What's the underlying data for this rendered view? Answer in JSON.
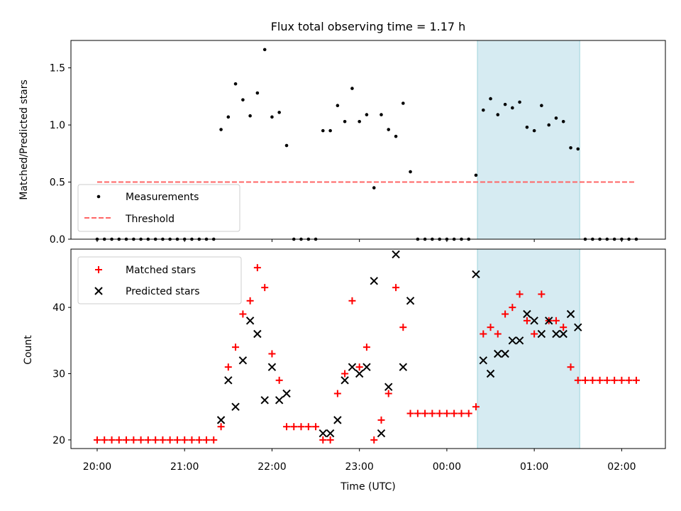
{
  "title": "Flux total observing time = 1.17 h",
  "colors": {
    "measurement": "#000000",
    "threshold": "#ff6666",
    "matched": "#ff0000",
    "predicted": "#000000",
    "highlight_fill": "#add8e6",
    "highlight_edge": "#9dd4dc"
  },
  "chart_data": [
    {
      "type": "scatter",
      "ylabel": "Matched/Predicted stars",
      "ylim": [
        0,
        1.74
      ],
      "yticks": [
        0.0,
        0.5,
        1.0,
        1.5
      ],
      "ytick_labels": [
        "0.0",
        "0.5",
        "1.0",
        "1.5"
      ],
      "legend_position": "lower-left",
      "series": [
        {
          "name": "Measurements",
          "marker": "dot",
          "points": [
            [
              20.0,
              0
            ],
            [
              20.083,
              0
            ],
            [
              20.167,
              0
            ],
            [
              20.25,
              0
            ],
            [
              20.333,
              0
            ],
            [
              20.417,
              0
            ],
            [
              20.5,
              0
            ],
            [
              20.583,
              0
            ],
            [
              20.667,
              0
            ],
            [
              20.75,
              0
            ],
            [
              20.833,
              0
            ],
            [
              20.917,
              0
            ],
            [
              21.0,
              0
            ],
            [
              21.083,
              0
            ],
            [
              21.167,
              0
            ],
            [
              21.25,
              0
            ],
            [
              21.333,
              0
            ],
            [
              21.417,
              0.96
            ],
            [
              21.5,
              1.07
            ],
            [
              21.583,
              1.36
            ],
            [
              21.667,
              1.22
            ],
            [
              21.75,
              1.08
            ],
            [
              21.833,
              1.28
            ],
            [
              21.917,
              1.66
            ],
            [
              22.0,
              1.07
            ],
            [
              22.083,
              1.11
            ],
            [
              22.167,
              0.82
            ],
            [
              22.25,
              0
            ],
            [
              22.333,
              0
            ],
            [
              22.417,
              0
            ],
            [
              22.5,
              0
            ],
            [
              22.583,
              0.95
            ],
            [
              22.667,
              0.95
            ],
            [
              22.75,
              1.17
            ],
            [
              22.833,
              1.03
            ],
            [
              22.917,
              1.32
            ],
            [
              23.0,
              1.03
            ],
            [
              23.083,
              1.09
            ],
            [
              23.167,
              0.45
            ],
            [
              23.25,
              1.09
            ],
            [
              23.333,
              0.96
            ],
            [
              23.417,
              0.9
            ],
            [
              23.5,
              1.19
            ],
            [
              23.583,
              0.59
            ],
            [
              23.667,
              0
            ],
            [
              23.75,
              0
            ],
            [
              23.833,
              0
            ],
            [
              23.917,
              0
            ],
            [
              24.0,
              0
            ],
            [
              24.083,
              0
            ],
            [
              24.167,
              0
            ],
            [
              24.25,
              0
            ],
            [
              24.333,
              0.56
            ],
            [
              24.417,
              1.13
            ],
            [
              24.5,
              1.23
            ],
            [
              24.583,
              1.09
            ],
            [
              24.667,
              1.18
            ],
            [
              24.75,
              1.15
            ],
            [
              24.833,
              1.2
            ],
            [
              24.917,
              0.98
            ],
            [
              25.0,
              0.95
            ],
            [
              25.083,
              1.17
            ],
            [
              25.167,
              1.0
            ],
            [
              25.25,
              1.06
            ],
            [
              25.333,
              1.03
            ],
            [
              25.417,
              0.8
            ],
            [
              25.5,
              0.79
            ],
            [
              25.583,
              0
            ],
            [
              25.667,
              0
            ],
            [
              25.75,
              0
            ],
            [
              25.833,
              0
            ],
            [
              25.917,
              0
            ],
            [
              26.0,
              0
            ],
            [
              26.083,
              0
            ],
            [
              26.167,
              0
            ]
          ]
        },
        {
          "name": "Threshold",
          "style": "dashed",
          "x": [
            20.0,
            26.167
          ],
          "y": [
            0.5,
            0.5
          ]
        }
      ]
    },
    {
      "type": "scatter",
      "ylabel": "Count",
      "xlabel": "Time (UTC)",
      "ylim": [
        18.7,
        48.8
      ],
      "yticks": [
        20,
        30,
        40
      ],
      "ytick_labels": [
        "20",
        "30",
        "40"
      ],
      "legend_position": "top-left",
      "series": [
        {
          "name": "Matched stars",
          "marker": "plus",
          "points": [
            [
              20.0,
              20
            ],
            [
              20.083,
              20
            ],
            [
              20.167,
              20
            ],
            [
              20.25,
              20
            ],
            [
              20.333,
              20
            ],
            [
              20.417,
              20
            ],
            [
              20.5,
              20
            ],
            [
              20.583,
              20
            ],
            [
              20.667,
              20
            ],
            [
              20.75,
              20
            ],
            [
              20.833,
              20
            ],
            [
              20.917,
              20
            ],
            [
              21.0,
              20
            ],
            [
              21.083,
              20
            ],
            [
              21.167,
              20
            ],
            [
              21.25,
              20
            ],
            [
              21.333,
              20
            ],
            [
              21.417,
              22
            ],
            [
              21.5,
              31
            ],
            [
              21.583,
              34
            ],
            [
              21.667,
              39
            ],
            [
              21.75,
              41
            ],
            [
              21.833,
              46
            ],
            [
              21.917,
              43
            ],
            [
              22.0,
              33
            ],
            [
              22.083,
              29
            ],
            [
              22.167,
              22
            ],
            [
              22.25,
              22
            ],
            [
              22.333,
              22
            ],
            [
              22.417,
              22
            ],
            [
              22.5,
              22
            ],
            [
              22.583,
              20
            ],
            [
              22.667,
              20
            ],
            [
              22.75,
              27
            ],
            [
              22.833,
              30
            ],
            [
              22.917,
              41
            ],
            [
              23.0,
              31
            ],
            [
              23.083,
              34
            ],
            [
              23.167,
              20
            ],
            [
              23.25,
              23
            ],
            [
              23.333,
              27
            ],
            [
              23.417,
              43
            ],
            [
              23.5,
              37
            ],
            [
              23.583,
              24
            ],
            [
              23.667,
              24
            ],
            [
              23.75,
              24
            ],
            [
              23.833,
              24
            ],
            [
              23.917,
              24
            ],
            [
              24.0,
              24
            ],
            [
              24.083,
              24
            ],
            [
              24.167,
              24
            ],
            [
              24.25,
              24
            ],
            [
              24.333,
              25
            ],
            [
              24.417,
              36
            ],
            [
              24.5,
              37
            ],
            [
              24.583,
              36
            ],
            [
              24.667,
              39
            ],
            [
              24.75,
              40
            ],
            [
              24.833,
              42
            ],
            [
              24.917,
              38
            ],
            [
              25.0,
              36
            ],
            [
              25.083,
              42
            ],
            [
              25.167,
              38
            ],
            [
              25.25,
              38
            ],
            [
              25.333,
              37
            ],
            [
              25.417,
              31
            ],
            [
              25.5,
              29
            ],
            [
              25.583,
              29
            ],
            [
              25.667,
              29
            ],
            [
              25.75,
              29
            ],
            [
              25.833,
              29
            ],
            [
              25.917,
              29
            ],
            [
              26.0,
              29
            ],
            [
              26.083,
              29
            ],
            [
              26.167,
              29
            ]
          ]
        },
        {
          "name": "Predicted stars",
          "marker": "x",
          "points": [
            [
              21.417,
              23
            ],
            [
              21.5,
              29
            ],
            [
              21.583,
              25
            ],
            [
              21.667,
              32
            ],
            [
              21.75,
              38
            ],
            [
              21.833,
              36
            ],
            [
              21.917,
              26
            ],
            [
              22.0,
              31
            ],
            [
              22.083,
              26
            ],
            [
              22.167,
              27
            ],
            [
              22.583,
              21
            ],
            [
              22.667,
              21
            ],
            [
              22.75,
              23
            ],
            [
              22.833,
              29
            ],
            [
              22.917,
              31
            ],
            [
              23.0,
              30
            ],
            [
              23.083,
              31
            ],
            [
              23.167,
              44
            ],
            [
              23.25,
              21
            ],
            [
              23.333,
              28
            ],
            [
              23.417,
              48
            ],
            [
              23.5,
              31
            ],
            [
              23.583,
              41
            ],
            [
              24.333,
              45
            ],
            [
              24.417,
              32
            ],
            [
              24.5,
              30
            ],
            [
              24.583,
              33
            ],
            [
              24.667,
              33
            ],
            [
              24.75,
              35
            ],
            [
              24.833,
              35
            ],
            [
              24.917,
              39
            ],
            [
              25.0,
              38
            ],
            [
              25.083,
              36
            ],
            [
              25.167,
              38
            ],
            [
              25.25,
              36
            ],
            [
              25.333,
              36
            ],
            [
              25.417,
              39
            ],
            [
              25.5,
              37
            ]
          ]
        }
      ]
    }
  ],
  "x_axis": {
    "range": [
      19.7,
      26.5
    ],
    "ticks": [
      20,
      21,
      22,
      23,
      24,
      25,
      26
    ],
    "tick_labels": [
      "20:00",
      "21:00",
      "22:00",
      "23:00",
      "00:00",
      "01:00",
      "02:00"
    ],
    "label": "Time (UTC)"
  },
  "highlight_span": [
    24.35,
    25.52
  ]
}
